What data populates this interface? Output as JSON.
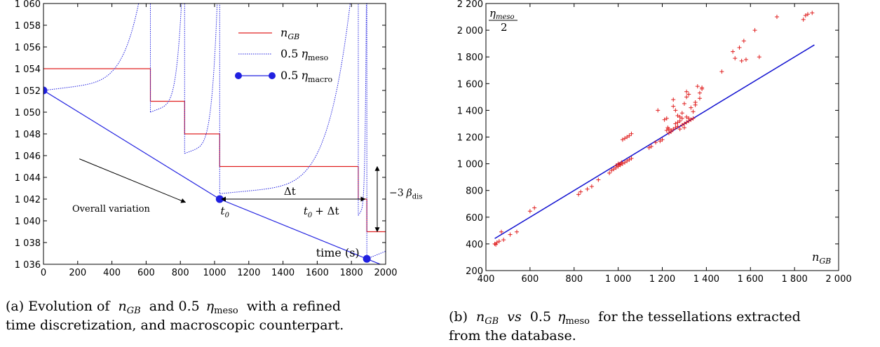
{
  "chart_data": [
    {
      "type": "line",
      "panel": "a",
      "xlim": [
        0,
        2000
      ],
      "ylim": [
        1036,
        1060
      ],
      "x_ticks": [
        0,
        200,
        400,
        600,
        800,
        1000,
        1200,
        1400,
        1600,
        1800,
        2000
      ],
      "x_tick_labels": [
        "0",
        "200",
        "400",
        "600",
        "800",
        "1000",
        "1200",
        "1400",
        "1600",
        "1800",
        "2000"
      ],
      "y_ticks": [
        1036,
        1038,
        1040,
        1042,
        1044,
        1046,
        1048,
        1050,
        1052,
        1054,
        1056,
        1058,
        1060
      ],
      "y_tick_labels": [
        "1 036",
        "1 038",
        "1 040",
        "1 042",
        "1 044",
        "1 046",
        "1 048",
        "1 050",
        "1 052",
        "1 054",
        "1 056",
        "1 058",
        "1 060"
      ],
      "xlabel": "time (s)",
      "legend_position": "top-right",
      "series": [
        {
          "name": "n_GB",
          "style": "solid-step",
          "color": "#e02020",
          "x": [
            0,
            625,
            625,
            825,
            825,
            1030,
            1030,
            1840,
            1840,
            1890,
            1890,
            2000
          ],
          "y": [
            1054,
            1054,
            1051,
            1051,
            1048,
            1048,
            1045,
            1045,
            1042,
            1042,
            1039,
            1039
          ]
        },
        {
          "name": "0.5 η_meso",
          "style": "dotted",
          "color": "#2020e0",
          "segments": [
            {
              "start": [
                0,
                1052
              ],
              "end": [
                625,
                1060
              ],
              "restart_y": 1050
            },
            {
              "start": [
                625,
                1050
              ],
              "end": [
                825,
                1060
              ],
              "restart_y": 1046.2
            },
            {
              "start": [
                825,
                1046.2
              ],
              "end": [
                1030,
                1060
              ],
              "restart_y": 1042.5
            },
            {
              "start": [
                1030,
                1042.5
              ],
              "end": [
                1840,
                1060
              ],
              "restart_y": 1040.5
            },
            {
              "start": [
                1840,
                1040.5
              ],
              "end": [
                1890,
                1060
              ],
              "restart_y": 1036.5
            }
          ],
          "tail": {
            "x": [
              1890,
              2000
            ],
            "y": [
              1036.5,
              1037.2
            ]
          }
        },
        {
          "name": "0.5 η_macro",
          "style": "solid-with-markers",
          "color": "#2020e0",
          "x": [
            0,
            1030,
            1890,
            2000
          ],
          "y": [
            1052,
            1042,
            1036.5,
            1035.8
          ],
          "markers": [
            [
              0,
              1052
            ],
            [
              1030,
              1042
            ],
            [
              1890,
              1036.5
            ]
          ]
        }
      ],
      "annotations": {
        "overall_variation": "Overall variation",
        "delta_t": "Δt",
        "t0": "t",
        "t0_sub": "0",
        "t0_plus_dt": "+ Δt",
        "beta_prefix": "−3",
        "beta": "β",
        "beta_sub": "dis"
      },
      "legend": {
        "n_gb_main": "n",
        "n_gb_sub": "GB",
        "meso_coef": "0.5",
        "meso_eta": "η",
        "meso_sub": "meso",
        "macro_coef": "0.5",
        "macro_eta": "η",
        "macro_sub": "macro"
      },
      "caption": {
        "line1_a": "(a) Evolution of",
        "line1_n": "n",
        "line1_sub": "GB",
        "line1_b": "and 0.5",
        "line1_eta": "η",
        "line1_meso": "meso",
        "line1_c": "with a refined",
        "line2": "time discretization, and macroscopic counterpart."
      }
    },
    {
      "type": "scatter",
      "panel": "b",
      "xlim": [
        400,
        2000
      ],
      "ylim": [
        200,
        2200
      ],
      "x_ticks": [
        400,
        600,
        800,
        1000,
        1200,
        1400,
        1600,
        1800,
        2000
      ],
      "x_tick_labels": [
        "400",
        "600",
        "800",
        "1 000",
        "1 200",
        "1 400",
        "1 600",
        "1 800",
        "2 000"
      ],
      "y_ticks": [
        200,
        400,
        600,
        800,
        1000,
        1200,
        1400,
        1600,
        1800,
        2000,
        2200
      ],
      "y_tick_labels": [
        "200",
        "400",
        "600",
        "800",
        "1 000",
        "1 200",
        "1 400",
        "1 600",
        "1 800",
        "2 000",
        "2 200"
      ],
      "axis_labels": {
        "y_num_eta": "η",
        "y_num_sub": "meso",
        "y_den": "2",
        "x_main": "n",
        "x_sub": "GB"
      },
      "series": [
        {
          "name": "points",
          "marker": "+",
          "color": "#e02020",
          "points": [
            [
              440,
              400
            ],
            [
              445,
              395
            ],
            [
              450,
              410
            ],
            [
              460,
              420
            ],
            [
              480,
              430
            ],
            [
              470,
              490
            ],
            [
              510,
              470
            ],
            [
              540,
              490
            ],
            [
              600,
              645
            ],
            [
              620,
              670
            ],
            [
              820,
              770
            ],
            [
              830,
              790
            ],
            [
              860,
              810
            ],
            [
              880,
              830
            ],
            [
              910,
              880
            ],
            [
              960,
              930
            ],
            [
              970,
              950
            ],
            [
              980,
              960
            ],
            [
              990,
              970
            ],
            [
              1000,
              980
            ],
            [
              1010,
              990
            ],
            [
              1020,
              1000
            ],
            [
              1030,
              1010
            ],
            [
              1040,
              1020
            ],
            [
              1050,
              1030
            ],
            [
              1060,
              1040
            ],
            [
              1000,
              1000
            ],
            [
              990,
              985
            ],
            [
              1005,
              995
            ],
            [
              1015,
              1010
            ],
            [
              1020,
              1180
            ],
            [
              1030,
              1190
            ],
            [
              1040,
              1200
            ],
            [
              1050,
              1210
            ],
            [
              1060,
              1225
            ],
            [
              1140,
              1120
            ],
            [
              1150,
              1130
            ],
            [
              1170,
              1160
            ],
            [
              1190,
              1170
            ],
            [
              1200,
              1180
            ],
            [
              1180,
              1400
            ],
            [
              1210,
              1330
            ],
            [
              1220,
              1340
            ],
            [
              1230,
              1260
            ],
            [
              1240,
              1250
            ],
            [
              1250,
              1260
            ],
            [
              1260,
              1270
            ],
            [
              1270,
              1280
            ],
            [
              1280,
              1260
            ],
            [
              1290,
              1290
            ],
            [
              1300,
              1300
            ],
            [
              1310,
              1310
            ],
            [
              1320,
              1320
            ],
            [
              1330,
              1330
            ],
            [
              1340,
              1340
            ],
            [
              1250,
              1480
            ],
            [
              1250,
              1430
            ],
            [
              1260,
              1400
            ],
            [
              1270,
              1360
            ],
            [
              1280,
              1350
            ],
            [
              1290,
              1380
            ],
            [
              1300,
              1450
            ],
            [
              1310,
              1500
            ],
            [
              1310,
              1540
            ],
            [
              1320,
              1520
            ],
            [
              1330,
              1420
            ],
            [
              1340,
              1390
            ],
            [
              1350,
              1440
            ],
            [
              1350,
              1460
            ],
            [
              1360,
              1580
            ],
            [
              1370,
              1530
            ],
            [
              1370,
              1490
            ],
            [
              1380,
              1570
            ],
            [
              1380,
              1560
            ],
            [
              1260,
              1300
            ],
            [
              1270,
              1310
            ],
            [
              1280,
              1320
            ],
            [
              1300,
              1270
            ],
            [
              1320,
              1340
            ],
            [
              1240,
              1240
            ],
            [
              1230,
              1230
            ],
            [
              1220,
              1250
            ],
            [
              1225,
              1270
            ],
            [
              1290,
              1340
            ],
            [
              1310,
              1350
            ],
            [
              1470,
              1690
            ],
            [
              1520,
              1840
            ],
            [
              1530,
              1790
            ],
            [
              1550,
              1870
            ],
            [
              1560,
              1770
            ],
            [
              1570,
              1920
            ],
            [
              1580,
              1780
            ],
            [
              1620,
              2000
            ],
            [
              1640,
              1800
            ],
            [
              1720,
              2100
            ],
            [
              1840,
              2080
            ],
            [
              1850,
              2110
            ],
            [
              1860,
              2120
            ],
            [
              1880,
              2130
            ]
          ]
        },
        {
          "name": "line",
          "type": "line",
          "color": "#1010d0",
          "x": [
            440,
            1890
          ],
          "y": [
            440,
            1890
          ]
        }
      ],
      "caption": {
        "part1": "(b)",
        "n": "n",
        "sub": "GB",
        "vs": "vs",
        "part2": "0.5",
        "eta": "η",
        "meso": "meso",
        "part3": "for the tessellations extracted",
        "line2": "from the database."
      }
    }
  ]
}
